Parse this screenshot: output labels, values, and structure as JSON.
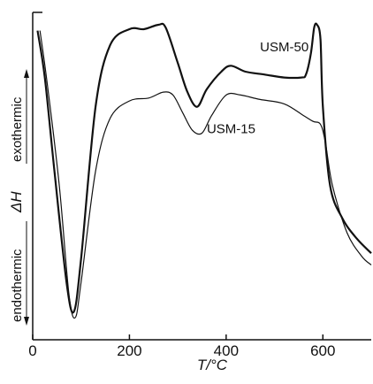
{
  "chart_data": {
    "type": "line",
    "xlabel": "T/°C",
    "ylabel": "ΔH",
    "y_top_label": "exothermic",
    "y_bottom_label": "endothermic",
    "xlim": [
      0,
      700
    ],
    "xticks": [
      "0",
      "200",
      "400",
      "600"
    ],
    "xtick_values": [
      0,
      200,
      400,
      600
    ],
    "y_tick_labels": "none",
    "grid": false,
    "series": [
      {
        "name": "USM-50",
        "x": [
          10,
          25,
          45,
          70,
          85,
          100,
          130,
          160,
          200,
          230,
          260,
          275,
          300,
          320,
          340,
          360,
          390,
          410,
          440,
          480,
          520,
          555,
          565,
          575,
          582,
          588,
          595,
          600,
          615,
          640,
          670,
          700
        ],
        "y": [
          0.98,
          0.82,
          0.5,
          0.12,
          0.02,
          0.2,
          0.72,
          0.93,
          0.985,
          0.985,
          1.0,
          0.99,
          0.87,
          0.77,
          0.72,
          0.78,
          0.84,
          0.86,
          0.84,
          0.83,
          0.82,
          0.82,
          0.83,
          0.9,
          0.99,
          1.0,
          0.95,
          0.72,
          0.45,
          0.34,
          0.27,
          0.22
        ]
      },
      {
        "name": "USM-15",
        "x": [
          15,
          30,
          55,
          75,
          88,
          100,
          130,
          160,
          200,
          240,
          270,
          290,
          310,
          330,
          350,
          370,
          400,
          430,
          470,
          520,
          560,
          580,
          595,
          605,
          620,
          650,
          680,
          700
        ],
        "y": [
          0.98,
          0.8,
          0.45,
          0.08,
          0.0,
          0.12,
          0.5,
          0.68,
          0.74,
          0.75,
          0.77,
          0.76,
          0.7,
          0.64,
          0.63,
          0.69,
          0.76,
          0.76,
          0.745,
          0.73,
          0.69,
          0.67,
          0.66,
          0.6,
          0.45,
          0.29,
          0.21,
          0.18
        ]
      }
    ],
    "annotations": [
      {
        "text": "USM-50",
        "x": 470,
        "y": 0.91,
        "series": "USM-50"
      },
      {
        "text": "USM-15",
        "x": 360,
        "y": 0.63,
        "series": "USM-15"
      }
    ],
    "colors": {
      "line": "#111111",
      "axis": "#111111",
      "background": "#ffffff"
    }
  }
}
